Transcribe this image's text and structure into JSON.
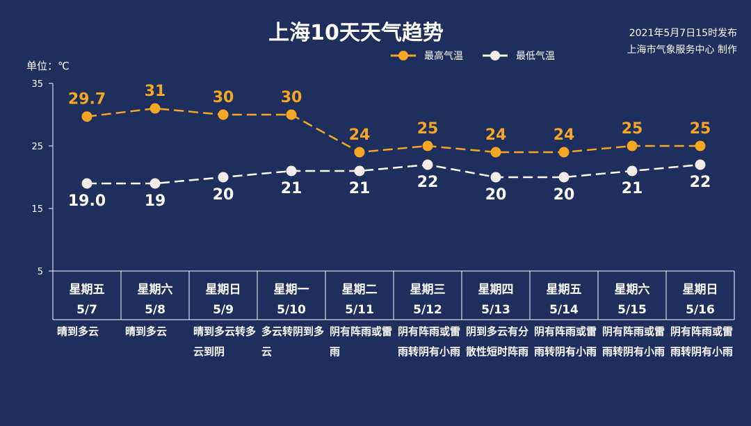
{
  "header": {
    "title": "上海10天天气趋势",
    "issued_line1": "2021年5月7日15时发布",
    "issued_line2": "上海市气象服务中心 制作",
    "unit": "单位：℃"
  },
  "legend": {
    "high": "最高气温",
    "low": "最低气温"
  },
  "colors": {
    "high": "#f5a623",
    "low": "#ffffff",
    "background": "#1e2f5e"
  },
  "chart_data": {
    "type": "line",
    "yticks": [
      "35",
      "25",
      "15",
      "5"
    ],
    "ylim": [
      5,
      35
    ],
    "x": [
      "5/7",
      "5/8",
      "5/9",
      "5/10",
      "5/11",
      "5/12",
      "5/13",
      "5/14",
      "5/15",
      "5/16"
    ],
    "days": [
      "星期五",
      "星期六",
      "星期日",
      "星期一",
      "星期二",
      "星期三",
      "星期四",
      "星期五",
      "星期六",
      "星期日"
    ],
    "series": [
      {
        "name": "最高气温",
        "values": [
          29.7,
          31,
          30,
          30,
          24,
          25,
          24,
          24,
          25,
          25
        ],
        "labels": [
          "29.7",
          "31",
          "30",
          "30",
          "24",
          "25",
          "24",
          "24",
          "25",
          "25"
        ]
      },
      {
        "name": "最低气温",
        "values": [
          19,
          19,
          20,
          21,
          21,
          22,
          20,
          20,
          21,
          22
        ],
        "labels": [
          "19.0",
          "19",
          "20",
          "21",
          "21",
          "22",
          "20",
          "20",
          "21",
          "22"
        ]
      }
    ],
    "weather": [
      "晴到多云",
      "晴到多云",
      "晴到多云转多云到阴",
      "多云转阴到多云",
      "阴有阵雨或雷雨",
      "阴有阵雨或雷雨转阴有小雨",
      "阴到多云有分散性短时阵雨",
      "阴有阵雨或雷雨转阴有小雨",
      "阴有阵雨或雷雨转阴有小雨",
      "阴有阵雨或雷雨转阴有小雨"
    ]
  }
}
